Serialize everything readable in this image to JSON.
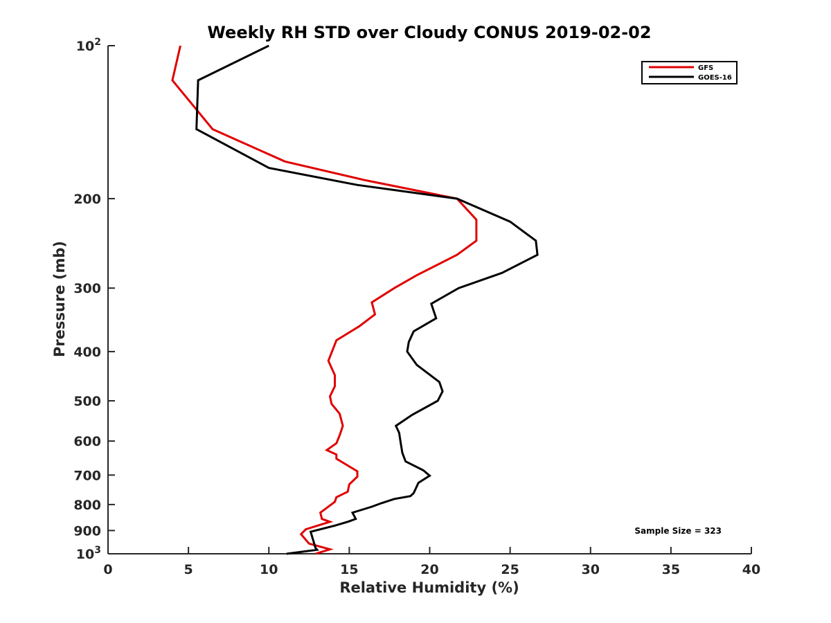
{
  "chart_data": {
    "type": "line",
    "title": "Weekly RH STD over Cloudy CONUS 2019-02-02",
    "xlabel": "Relative Humidity (%)",
    "ylabel": "Pressure (mb)",
    "xlim": [
      0,
      40
    ],
    "ylim": [
      100,
      1000
    ],
    "y_scale": "log",
    "y_reversed": true,
    "grid": false,
    "legend_position": "top-right",
    "x_ticks": [
      0,
      5,
      10,
      15,
      20,
      25,
      30,
      35,
      40
    ],
    "x_tick_labels": [
      "0",
      "5",
      "10",
      "15",
      "20",
      "25",
      "30",
      "35",
      "40"
    ],
    "y_ticks": [
      100,
      200,
      300,
      400,
      500,
      600,
      700,
      800,
      900,
      1000
    ],
    "y_tick_labels": [
      {
        "base": "10",
        "sup": "2"
      },
      {
        "base": "200",
        "sup": ""
      },
      {
        "base": "300",
        "sup": ""
      },
      {
        "base": "400",
        "sup": ""
      },
      {
        "base": "500",
        "sup": ""
      },
      {
        "base": "600",
        "sup": ""
      },
      {
        "base": "700",
        "sup": ""
      },
      {
        "base": "800",
        "sup": ""
      },
      {
        "base": "900",
        "sup": ""
      },
      {
        "base": "10",
        "sup": "3"
      }
    ],
    "annotation": "Sample Size = 323",
    "series": [
      {
        "name": "GFS",
        "color": "#e00000",
        "points": [
          [
            4.5,
            100
          ],
          [
            4.0,
            117
          ],
          [
            6.5,
            146
          ],
          [
            11.0,
            169
          ],
          [
            16.0,
            184
          ],
          [
            21.7,
            200
          ],
          [
            22.9,
            220
          ],
          [
            22.9,
            242
          ],
          [
            21.7,
            258
          ],
          [
            19.2,
            283
          ],
          [
            17.8,
            300
          ],
          [
            16.4,
            320
          ],
          [
            16.6,
            338
          ],
          [
            15.6,
            357
          ],
          [
            14.2,
            380
          ],
          [
            13.7,
            417
          ],
          [
            14.1,
            445
          ],
          [
            14.1,
            468
          ],
          [
            13.8,
            490
          ],
          [
            13.9,
            507
          ],
          [
            14.4,
            530
          ],
          [
            14.6,
            560
          ],
          [
            14.4,
            585
          ],
          [
            14.2,
            606
          ],
          [
            13.6,
            625
          ],
          [
            14.2,
            638
          ],
          [
            14.2,
            650
          ],
          [
            15.5,
            688
          ],
          [
            15.5,
            705
          ],
          [
            15.0,
            730
          ],
          [
            14.9,
            755
          ],
          [
            14.2,
            774
          ],
          [
            14.1,
            790
          ],
          [
            13.2,
            830
          ],
          [
            13.3,
            854
          ],
          [
            13.8,
            865
          ],
          [
            12.3,
            895
          ],
          [
            12.0,
            915
          ],
          [
            12.5,
            955
          ],
          [
            13.8,
            980
          ],
          [
            12.9,
            1000
          ]
        ]
      },
      {
        "name": "GOES-16",
        "color": "#000000",
        "points": [
          [
            10.0,
            100
          ],
          [
            5.6,
            117
          ],
          [
            5.5,
            146
          ],
          [
            10.0,
            174
          ],
          [
            15.5,
            188
          ],
          [
            21.7,
            200
          ],
          [
            25.0,
            222
          ],
          [
            26.6,
            242
          ],
          [
            26.7,
            258
          ],
          [
            24.5,
            280
          ],
          [
            21.8,
            300
          ],
          [
            20.1,
            322
          ],
          [
            20.4,
            344
          ],
          [
            19.0,
            365
          ],
          [
            18.7,
            383
          ],
          [
            18.6,
            400
          ],
          [
            19.2,
            425
          ],
          [
            20.6,
            459
          ],
          [
            20.8,
            479
          ],
          [
            20.5,
            500
          ],
          [
            18.9,
            533
          ],
          [
            17.9,
            560
          ],
          [
            18.1,
            578
          ],
          [
            18.2,
            606
          ],
          [
            18.3,
            633
          ],
          [
            18.5,
            658
          ],
          [
            19.6,
            685
          ],
          [
            20.0,
            702
          ],
          [
            19.3,
            725
          ],
          [
            19.0,
            760
          ],
          [
            18.8,
            770
          ],
          [
            17.8,
            780
          ],
          [
            17.0,
            795
          ],
          [
            16.4,
            808
          ],
          [
            15.2,
            830
          ],
          [
            15.4,
            854
          ],
          [
            14.9,
            865
          ],
          [
            14.1,
            880
          ],
          [
            12.6,
            905
          ],
          [
            12.9,
            974
          ],
          [
            13.0,
            982
          ],
          [
            11.1,
            1000
          ]
        ]
      }
    ]
  }
}
